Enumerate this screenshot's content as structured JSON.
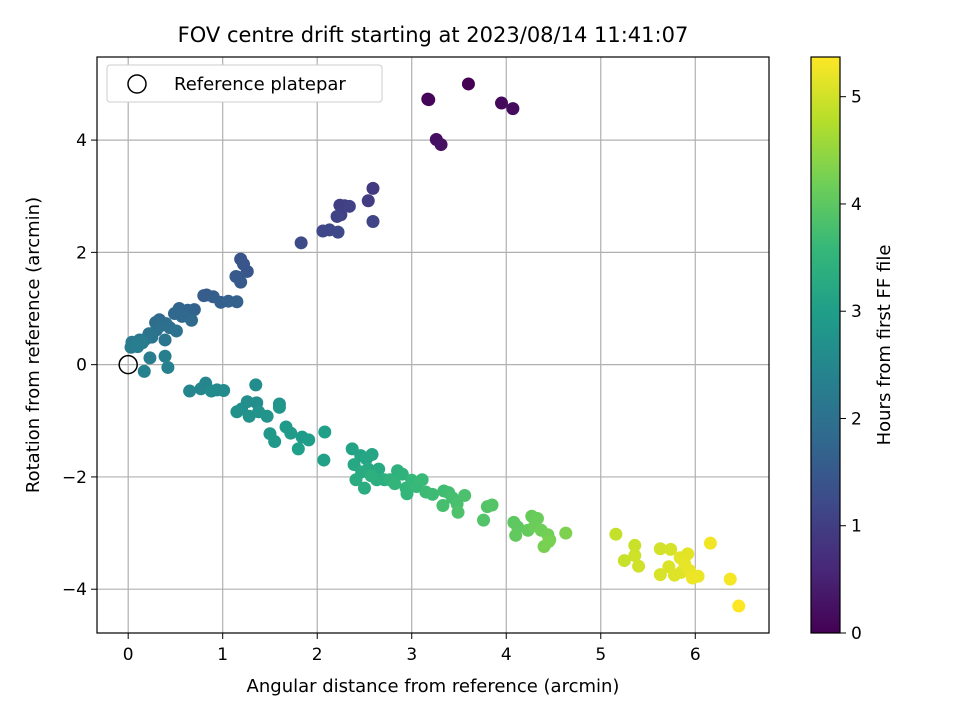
{
  "chart_data": {
    "type": "scatter",
    "title": "FOV centre drift starting at 2023/08/14 11:41:07",
    "xlabel": "Angular distance from reference (arcmin)",
    "ylabel": "Rotation from reference (arcmin)",
    "xlim": [
      -0.33,
      6.78
    ],
    "ylim": [
      -4.78,
      5.48
    ],
    "xticks": [
      0,
      1,
      2,
      3,
      4,
      5,
      6
    ],
    "yticks": [
      -4,
      -2,
      0,
      2,
      4
    ],
    "grid": true,
    "legend": {
      "placement": "top-left",
      "entries": [
        "Reference platepar"
      ]
    },
    "reference_point": {
      "x": 0,
      "y": 0
    },
    "colorbar": {
      "label": "Hours from first FF file",
      "range": [
        0,
        5.37
      ],
      "ticks": [
        0,
        1,
        2,
        3,
        4,
        5
      ],
      "colormap": "viridis",
      "colors": [
        "#440154",
        "#482878",
        "#3e4989",
        "#31688e",
        "#26828e",
        "#1f9e89",
        "#35b779",
        "#6ece58",
        "#b5de2b",
        "#fde725"
      ]
    },
    "series": [
      {
        "points": [
          [
            3.6,
            5.0,
            0.0
          ],
          [
            3.17,
            4.73,
            0.05
          ],
          [
            3.18,
            4.72,
            0.08
          ],
          [
            3.95,
            4.66,
            0.12
          ],
          [
            4.07,
            4.56,
            0.15
          ],
          [
            3.26,
            4.01,
            0.2
          ],
          [
            3.31,
            3.92,
            0.25
          ],
          [
            2.59,
            3.14,
            0.9
          ],
          [
            2.54,
            2.92,
            0.95
          ],
          [
            2.29,
            2.83,
            1.0
          ],
          [
            2.24,
            2.84,
            1.02
          ],
          [
            2.25,
            2.67,
            1.05
          ],
          [
            2.34,
            2.82,
            1.07
          ],
          [
            2.21,
            2.64,
            1.1
          ],
          [
            2.59,
            2.55,
            1.12
          ],
          [
            2.06,
            2.38,
            1.15
          ],
          [
            2.13,
            2.4,
            1.17
          ],
          [
            2.22,
            2.36,
            1.2
          ],
          [
            1.83,
            2.17,
            1.25
          ],
          [
            1.19,
            1.88,
            1.4
          ],
          [
            1.22,
            1.79,
            1.42
          ],
          [
            1.26,
            1.66,
            1.45
          ],
          [
            1.16,
            1.56,
            1.47
          ],
          [
            1.14,
            1.57,
            1.5
          ],
          [
            1.19,
            1.47,
            1.52
          ],
          [
            0.83,
            1.24,
            1.55
          ],
          [
            0.8,
            1.23,
            1.57
          ],
          [
            0.9,
            1.21,
            1.6
          ],
          [
            0.98,
            1.11,
            1.62
          ],
          [
            1.06,
            1.13,
            1.65
          ],
          [
            1.15,
            1.12,
            1.67
          ],
          [
            0.7,
            0.98,
            1.7
          ],
          [
            0.63,
            0.97,
            1.72
          ],
          [
            0.54,
            1.0,
            1.75
          ],
          [
            0.58,
            0.94,
            1.77
          ],
          [
            0.49,
            0.91,
            1.8
          ],
          [
            0.57,
            0.86,
            1.82
          ],
          [
            0.33,
            0.8,
            1.85
          ],
          [
            0.67,
            0.79,
            1.87
          ],
          [
            0.29,
            0.75,
            1.9
          ],
          [
            0.4,
            0.73,
            1.92
          ],
          [
            0.35,
            0.7,
            1.95
          ],
          [
            0.44,
            0.66,
            1.97
          ],
          [
            0.3,
            0.62,
            2.0
          ],
          [
            0.51,
            0.6,
            2.02
          ],
          [
            0.22,
            0.55,
            2.05
          ],
          [
            0.25,
            0.49,
            2.07
          ],
          [
            0.18,
            0.45,
            2.1
          ],
          [
            0.39,
            0.44,
            2.12
          ],
          [
            0.12,
            0.44,
            2.15
          ],
          [
            0.04,
            0.4,
            2.17
          ],
          [
            0.08,
            0.37,
            2.2
          ],
          [
            0.15,
            0.39,
            2.22
          ],
          [
            0.03,
            0.31,
            2.25
          ],
          [
            0.1,
            0.32,
            2.27
          ],
          [
            0.23,
            0.12,
            2.3
          ],
          [
            0.39,
            0.15,
            2.32
          ],
          [
            0.42,
            -0.05,
            2.35
          ],
          [
            0.17,
            -0.12,
            2.37
          ],
          [
            0.65,
            -0.47,
            2.45
          ],
          [
            0.82,
            -0.33,
            2.47
          ],
          [
            0.77,
            -0.43,
            2.5
          ],
          [
            0.94,
            -0.45,
            2.52
          ],
          [
            1.01,
            -0.46,
            2.55
          ],
          [
            0.88,
            -0.47,
            2.57
          ],
          [
            1.35,
            -0.36,
            2.6
          ],
          [
            1.36,
            -0.68,
            2.62
          ],
          [
            1.26,
            -0.66,
            2.65
          ],
          [
            1.2,
            -0.79,
            2.67
          ],
          [
            1.15,
            -0.84,
            2.7
          ],
          [
            1.28,
            -0.92,
            2.72
          ],
          [
            1.38,
            -0.84,
            2.75
          ],
          [
            1.47,
            -0.92,
            2.77
          ],
          [
            1.6,
            -0.7,
            2.8
          ],
          [
            1.6,
            -0.76,
            2.82
          ],
          [
            1.5,
            -1.23,
            2.85
          ],
          [
            1.55,
            -1.37,
            2.87
          ],
          [
            1.67,
            -1.11,
            2.9
          ],
          [
            1.72,
            -1.22,
            2.92
          ],
          [
            1.84,
            -1.29,
            2.95
          ],
          [
            1.91,
            -1.34,
            2.97
          ],
          [
            1.8,
            -1.5,
            3.0
          ],
          [
            2.08,
            -1.2,
            3.02
          ],
          [
            2.07,
            -1.7,
            3.05
          ],
          [
            2.37,
            -1.5,
            3.1
          ],
          [
            2.46,
            -1.62,
            3.12
          ],
          [
            2.58,
            -1.6,
            3.15
          ],
          [
            2.52,
            -1.68,
            3.17
          ],
          [
            2.39,
            -1.78,
            3.2
          ],
          [
            2.54,
            -1.86,
            3.22
          ],
          [
            2.65,
            -1.86,
            3.25
          ],
          [
            2.47,
            -1.91,
            3.27
          ],
          [
            2.41,
            -2.05,
            3.3
          ],
          [
            2.5,
            -2.2,
            3.32
          ],
          [
            2.63,
            -2.05,
            3.35
          ],
          [
            2.71,
            -2.05,
            3.37
          ],
          [
            2.57,
            -1.98,
            3.4
          ],
          [
            2.85,
            -1.89,
            3.42
          ],
          [
            2.9,
            -1.95,
            3.45
          ],
          [
            2.77,
            -2.05,
            3.47
          ],
          [
            2.82,
            -2.12,
            3.5
          ],
          [
            2.94,
            -2.2,
            3.52
          ],
          [
            2.95,
            -2.3,
            3.55
          ],
          [
            3.0,
            -2.06,
            3.57
          ],
          [
            3.05,
            -2.17,
            3.6
          ],
          [
            3.11,
            -2.05,
            3.62
          ],
          [
            3.15,
            -2.27,
            3.65
          ],
          [
            3.22,
            -2.31,
            3.67
          ],
          [
            3.34,
            -2.25,
            3.7
          ],
          [
            3.39,
            -2.28,
            3.72
          ],
          [
            3.43,
            -2.37,
            3.75
          ],
          [
            3.33,
            -2.51,
            3.77
          ],
          [
            3.48,
            -2.48,
            3.8
          ],
          [
            3.56,
            -2.33,
            3.82
          ],
          [
            3.49,
            -2.63,
            3.85
          ],
          [
            3.76,
            -2.77,
            3.88
          ],
          [
            3.8,
            -2.53,
            3.9
          ],
          [
            3.85,
            -2.5,
            3.92
          ],
          [
            4.08,
            -2.81,
            4.0
          ],
          [
            4.12,
            -2.89,
            4.02
          ],
          [
            4.1,
            -3.04,
            4.05
          ],
          [
            4.23,
            -2.95,
            4.07
          ],
          [
            4.27,
            -2.7,
            4.1
          ],
          [
            4.33,
            -2.74,
            4.12
          ],
          [
            4.3,
            -2.87,
            4.15
          ],
          [
            4.37,
            -2.95,
            4.17
          ],
          [
            4.44,
            -3.03,
            4.2
          ],
          [
            4.46,
            -3.12,
            4.22
          ],
          [
            4.4,
            -3.24,
            4.25
          ],
          [
            4.45,
            -3.15,
            4.27
          ],
          [
            4.63,
            -3.0,
            4.3
          ],
          [
            5.16,
            -3.02,
            4.9
          ],
          [
            5.25,
            -3.49,
            4.92
          ],
          [
            5.36,
            -3.22,
            4.95
          ],
          [
            5.36,
            -3.4,
            4.97
          ],
          [
            5.4,
            -3.59,
            5.0
          ],
          [
            5.63,
            -3.28,
            5.02
          ],
          [
            5.74,
            -3.29,
            5.04
          ],
          [
            5.63,
            -3.74,
            5.06
          ],
          [
            5.72,
            -3.6,
            5.08
          ],
          [
            5.78,
            -3.75,
            5.1
          ],
          [
            5.85,
            -3.7,
            5.12
          ],
          [
            5.84,
            -3.44,
            5.14
          ],
          [
            5.92,
            -3.37,
            5.16
          ],
          [
            5.89,
            -3.55,
            5.18
          ],
          [
            5.94,
            -3.67,
            5.2
          ],
          [
            6.03,
            -3.77,
            5.22
          ],
          [
            5.97,
            -3.8,
            5.24
          ],
          [
            6.16,
            -3.18,
            5.26
          ],
          [
            6.37,
            -3.82,
            5.3
          ],
          [
            6.46,
            -4.3,
            5.37
          ]
        ]
      }
    ]
  }
}
